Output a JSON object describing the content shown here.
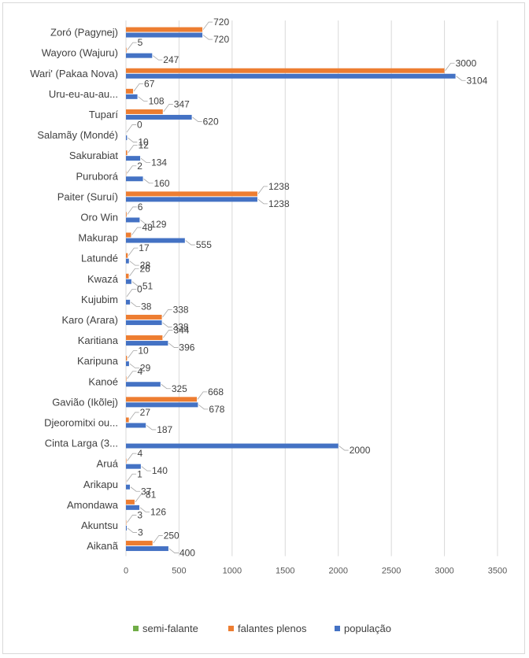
{
  "chart_data": {
    "type": "bar",
    "orientation": "horizontal",
    "categories": [
      "Zoró (Pagynej)",
      "Wayoro (Wajuru)",
      "Wari' (Pakaa Nova)",
      "Uru-eu-au-au...",
      "Tuparí",
      "Salamãy (Mondé)",
      "Sakurabiat",
      "Puruborá",
      "Paiter (Suruí)",
      "Oro Win",
      "Makurap",
      "Latundé",
      "Kwazá",
      "Kujubim",
      "Karo (Arara)",
      "Karitiana",
      "Karipuna",
      "Kanoé",
      "Gavião (Ikõlej)",
      "Djeoromitxi ou...",
      "Cinta Larga (3...",
      "Aruá",
      "Arikapu",
      "Amondawa",
      "Akuntsu",
      "Aikanã"
    ],
    "series": [
      {
        "name": "semi-falante",
        "color": "#70ad47",
        "values": [
          null,
          null,
          null,
          null,
          null,
          null,
          null,
          null,
          null,
          null,
          null,
          null,
          null,
          null,
          null,
          null,
          null,
          null,
          null,
          null,
          null,
          null,
          null,
          null,
          null,
          null
        ]
      },
      {
        "name": "falantes plenos",
        "color": "#ed7d31",
        "values": [
          720,
          5,
          3000,
          67,
          347,
          0,
          12,
          2,
          1238,
          6,
          48,
          17,
          26,
          0,
          338,
          344,
          10,
          4,
          668,
          27,
          null,
          4,
          1,
          81,
          3,
          250
        ],
        "labels": [
          "720",
          "5",
          "3000",
          "67",
          "347",
          "0",
          "12",
          "2",
          "1238",
          "6",
          "48",
          "17",
          "26",
          "0",
          "338",
          "344",
          "10",
          "4",
          "668",
          "27",
          "",
          "4",
          "1",
          "81",
          "3",
          "250"
        ]
      },
      {
        "name": "população",
        "color": "#4472c4",
        "values": [
          720,
          247,
          3104,
          108,
          620,
          10,
          134,
          160,
          1238,
          129,
          555,
          28,
          51,
          38,
          338,
          396,
          29,
          325,
          678,
          187,
          2000,
          140,
          37,
          126,
          3,
          400
        ],
        "labels": [
          "720",
          "247",
          "3104",
          "108",
          "620",
          "10",
          "134",
          "160",
          "1238",
          "129",
          "555",
          "28",
          "51",
          "38",
          "338",
          "396",
          "29",
          "325",
          "678",
          "187",
          "2000",
          "140",
          "37",
          "126",
          "3",
          "400"
        ]
      }
    ],
    "xlim": [
      0,
      3500
    ],
    "x_ticks": [
      "0",
      "500",
      "1000",
      "1500",
      "2000",
      "2500",
      "3000",
      "3500"
    ],
    "x_tick_values": [
      0,
      500,
      1000,
      1500,
      2000,
      2500,
      3000,
      3500
    ],
    "grid": "vertical",
    "legend_position": "bottom",
    "gridline_color": "#d9d9d9",
    "leader_line_color": "#a6a6a6"
  }
}
